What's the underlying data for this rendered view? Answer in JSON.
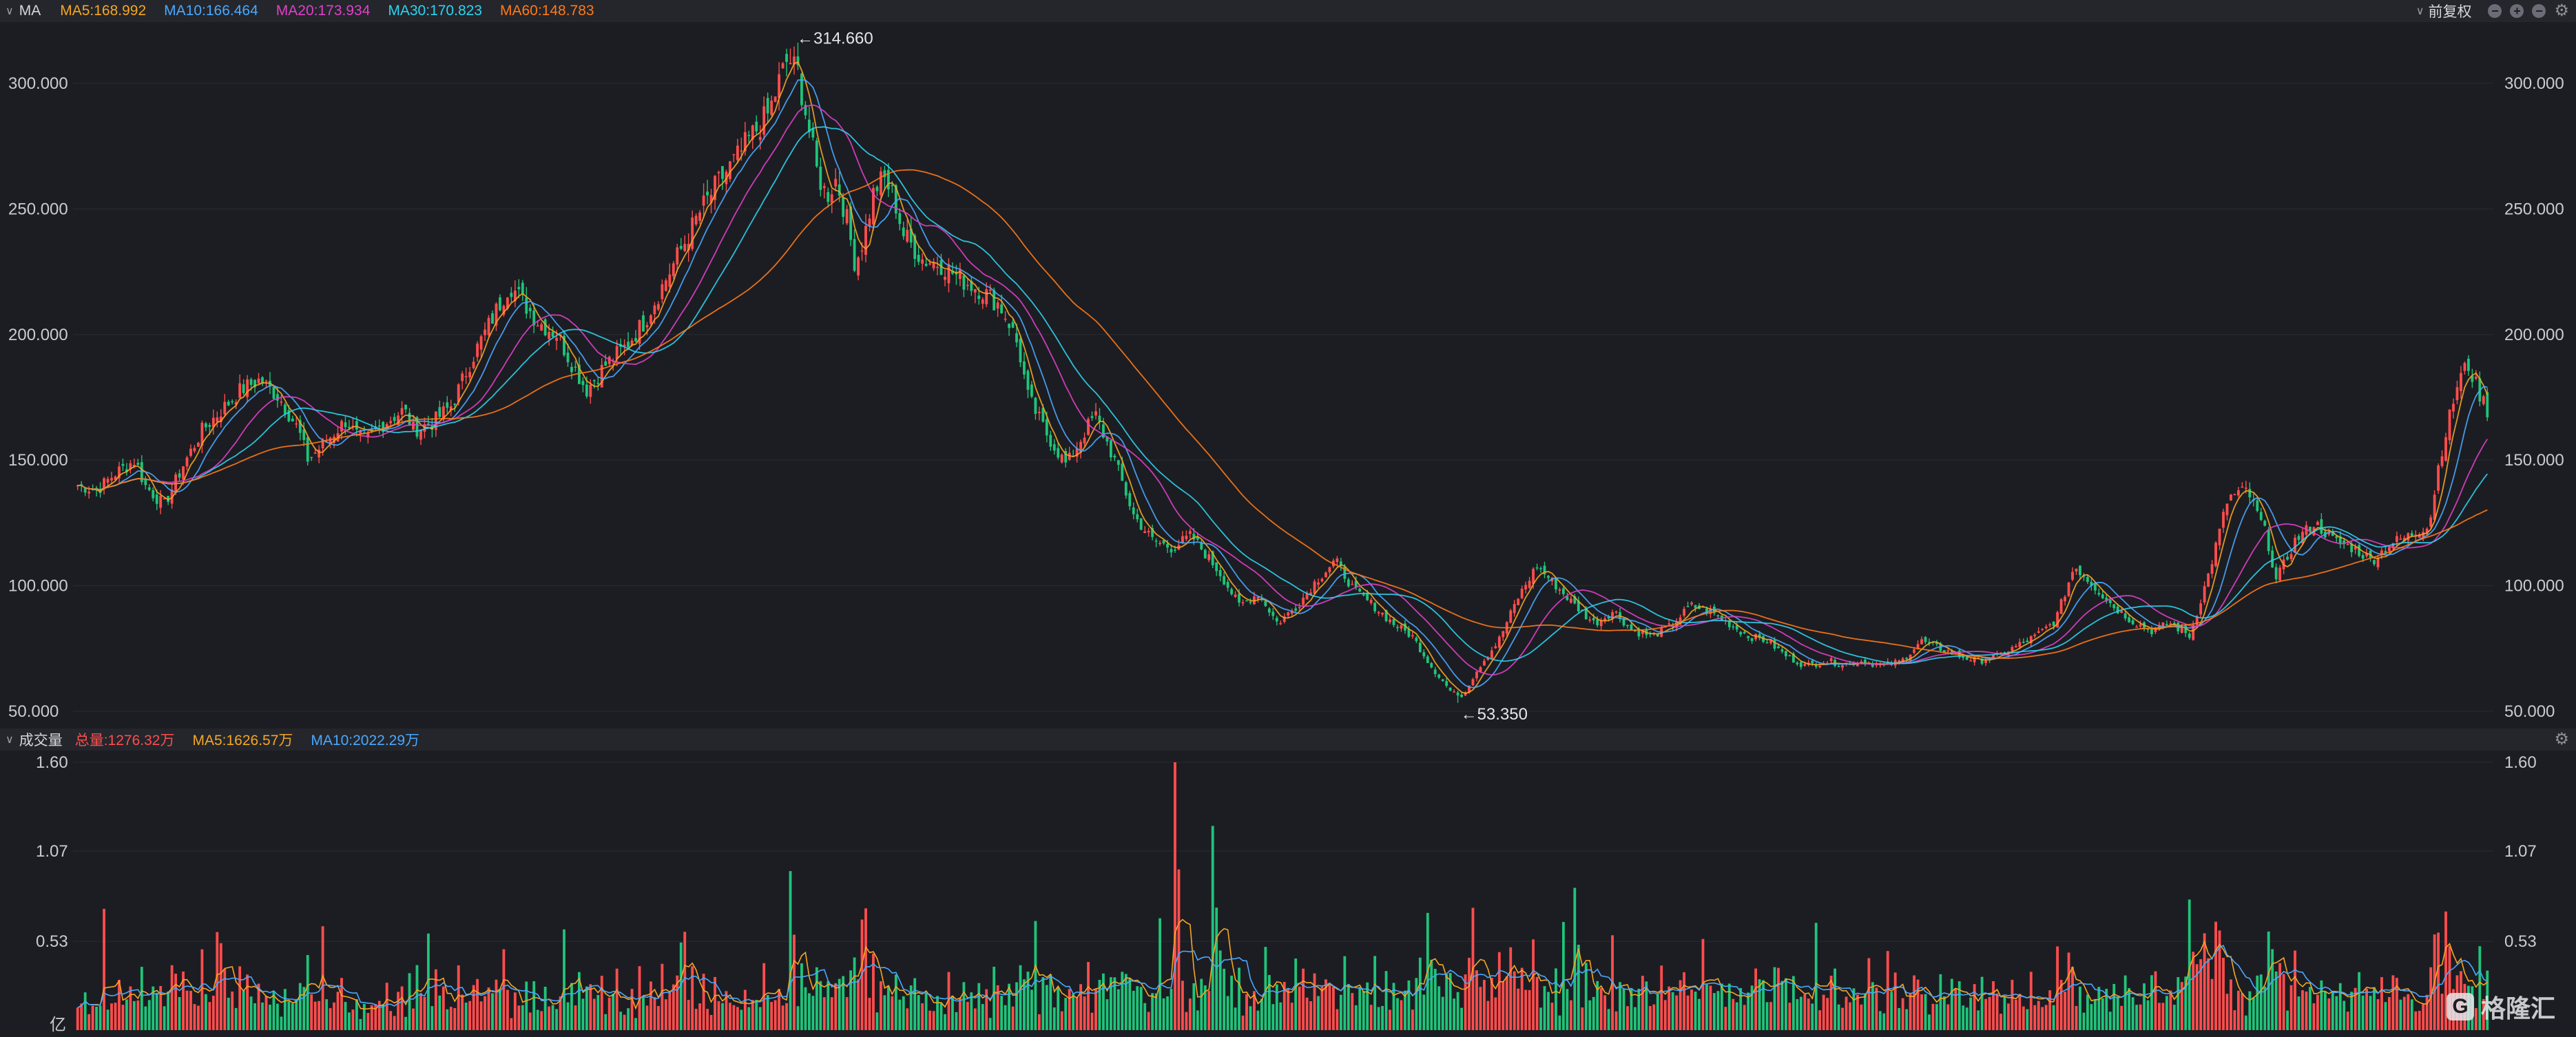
{
  "header": {
    "title": "MA",
    "ma_lines": [
      {
        "key": "ma5",
        "text": "MA5:168.992",
        "color": "#f5a623"
      },
      {
        "key": "ma10",
        "text": "MA10:166.464",
        "color": "#4aa8ff"
      },
      {
        "key": "ma20",
        "text": "MA20:173.934",
        "color": "#e040c8"
      },
      {
        "key": "ma30",
        "text": "MA30:170.823",
        "color": "#2ed3f0"
      },
      {
        "key": "ma60",
        "text": "MA60:148.783",
        "color": "#ff7a1a"
      }
    ],
    "adjust_label": "前复权"
  },
  "volume_header": {
    "title": "成交量",
    "items": [
      {
        "key": "total",
        "text": "总量:1276.32万",
        "color": "#ff4d4d"
      },
      {
        "key": "vma5",
        "text": "MA5:1626.57万",
        "color": "#f5a623"
      },
      {
        "key": "vma10",
        "text": "MA10:2022.29万",
        "color": "#4aa8ff"
      }
    ]
  },
  "price_axis": {
    "ticks": [
      "300.000",
      "250.000",
      "200.000",
      "150.000",
      "100.000",
      "50.000"
    ],
    "values": [
      300,
      250,
      200,
      150,
      100,
      50
    ]
  },
  "volume_axis": {
    "ticks": [
      "1.60",
      "1.07",
      "0.53"
    ],
    "values": [
      1.6,
      1.07,
      0.53
    ],
    "unit": "亿"
  },
  "annotations": {
    "high_label": "←314.660",
    "low_label": "←53.350"
  },
  "watermark": {
    "logo": "G",
    "text": "格隆汇"
  },
  "colors": {
    "up": "#ff4d4d",
    "down": "#1fc47a",
    "background": "#1c1d22",
    "grid": "#2a2c33"
  },
  "chart_data": {
    "type": "candlestick",
    "price_range": [
      50,
      315
    ],
    "high": 314.66,
    "low": 53.35,
    "price_path": [
      [
        0,
        140
      ],
      [
        2,
        138
      ],
      [
        4,
        145
      ],
      [
        6,
        150
      ],
      [
        7,
        140
      ],
      [
        9,
        132
      ],
      [
        11,
        148
      ],
      [
        13,
        162
      ],
      [
        15,
        170
      ],
      [
        17,
        178
      ],
      [
        19,
        182
      ],
      [
        21,
        175
      ],
      [
        23,
        162
      ],
      [
        24,
        150
      ],
      [
        26,
        158
      ],
      [
        28,
        166
      ],
      [
        29,
        160
      ],
      [
        30,
        158
      ],
      [
        32,
        165
      ],
      [
        34,
        170
      ],
      [
        35,
        162
      ],
      [
        37,
        165
      ],
      [
        39,
        172
      ],
      [
        41,
        190
      ],
      [
        43,
        205
      ],
      [
        45,
        220
      ],
      [
        46,
        215
      ],
      [
        48,
        205
      ],
      [
        50,
        200
      ],
      [
        51,
        192
      ],
      [
        53,
        178
      ],
      [
        55,
        188
      ],
      [
        57,
        195
      ],
      [
        59,
        205
      ],
      [
        61,
        220
      ],
      [
        63,
        235
      ],
      [
        65,
        250
      ],
      [
        67,
        262
      ],
      [
        69,
        272
      ],
      [
        70,
        278
      ],
      [
        72,
        288
      ],
      [
        73,
        300
      ],
      [
        74,
        310
      ],
      [
        75,
        305
      ],
      [
        76,
        285
      ],
      [
        77,
        265
      ],
      [
        78,
        255
      ],
      [
        79,
        262
      ],
      [
        80,
        248
      ],
      [
        81,
        228
      ],
      [
        82,
        240
      ],
      [
        83,
        258
      ],
      [
        84,
        262
      ],
      [
        85,
        255
      ],
      [
        86,
        240
      ],
      [
        88,
        230
      ],
      [
        90,
        228
      ],
      [
        92,
        222
      ],
      [
        94,
        218
      ],
      [
        96,
        212
      ],
      [
        97,
        205
      ],
      [
        98,
        195
      ],
      [
        99,
        175
      ],
      [
        101,
        160
      ],
      [
        103,
        148
      ],
      [
        105,
        162
      ],
      [
        106,
        168
      ],
      [
        108,
        150
      ],
      [
        110,
        128
      ],
      [
        112,
        118
      ],
      [
        114,
        115
      ],
      [
        116,
        120
      ],
      [
        117,
        115
      ],
      [
        119,
        105
      ],
      [
        121,
        92
      ],
      [
        123,
        97
      ],
      [
        125,
        85
      ],
      [
        127,
        92
      ],
      [
        129,
        102
      ],
      [
        131,
        110
      ],
      [
        133,
        98
      ],
      [
        135,
        92
      ],
      [
        137,
        85
      ],
      [
        139,
        80
      ],
      [
        141,
        68
      ],
      [
        143,
        58
      ],
      [
        144,
        55
      ],
      [
        146,
        68
      ],
      [
        148,
        78
      ],
      [
        150,
        95
      ],
      [
        152,
        108
      ],
      [
        154,
        100
      ],
      [
        156,
        92
      ],
      [
        158,
        85
      ],
      [
        160,
        90
      ],
      [
        162,
        82
      ],
      [
        164,
        80
      ],
      [
        166,
        84
      ],
      [
        168,
        92
      ],
      [
        170,
        90
      ],
      [
        172,
        85
      ],
      [
        174,
        80
      ],
      [
        176,
        78
      ],
      [
        178,
        72
      ],
      [
        180,
        68
      ],
      [
        182,
        70
      ],
      [
        184,
        69
      ],
      [
        186,
        70
      ],
      [
        188,
        68
      ],
      [
        190,
        70
      ],
      [
        192,
        78
      ],
      [
        194,
        75
      ],
      [
        196,
        72
      ],
      [
        198,
        70
      ],
      [
        200,
        72
      ],
      [
        202,
        76
      ],
      [
        204,
        80
      ],
      [
        206,
        86
      ],
      [
        208,
        108
      ],
      [
        210,
        100
      ],
      [
        212,
        92
      ],
      [
        214,
        86
      ],
      [
        216,
        82
      ],
      [
        218,
        85
      ],
      [
        220,
        80
      ],
      [
        222,
        105
      ],
      [
        224,
        135
      ],
      [
        226,
        138
      ],
      [
        228,
        120
      ],
      [
        229,
        102
      ],
      [
        231,
        118
      ],
      [
        233,
        125
      ],
      [
        235,
        118
      ],
      [
        237,
        115
      ],
      [
        239,
        110
      ],
      [
        241,
        117
      ],
      [
        243,
        120
      ],
      [
        245,
        125
      ],
      [
        246,
        150
      ],
      [
        248,
        182
      ],
      [
        249,
        188
      ],
      [
        250,
        178
      ],
      [
        251,
        170
      ]
    ],
    "volume_range_yi": [
      0,
      1.6
    ]
  }
}
